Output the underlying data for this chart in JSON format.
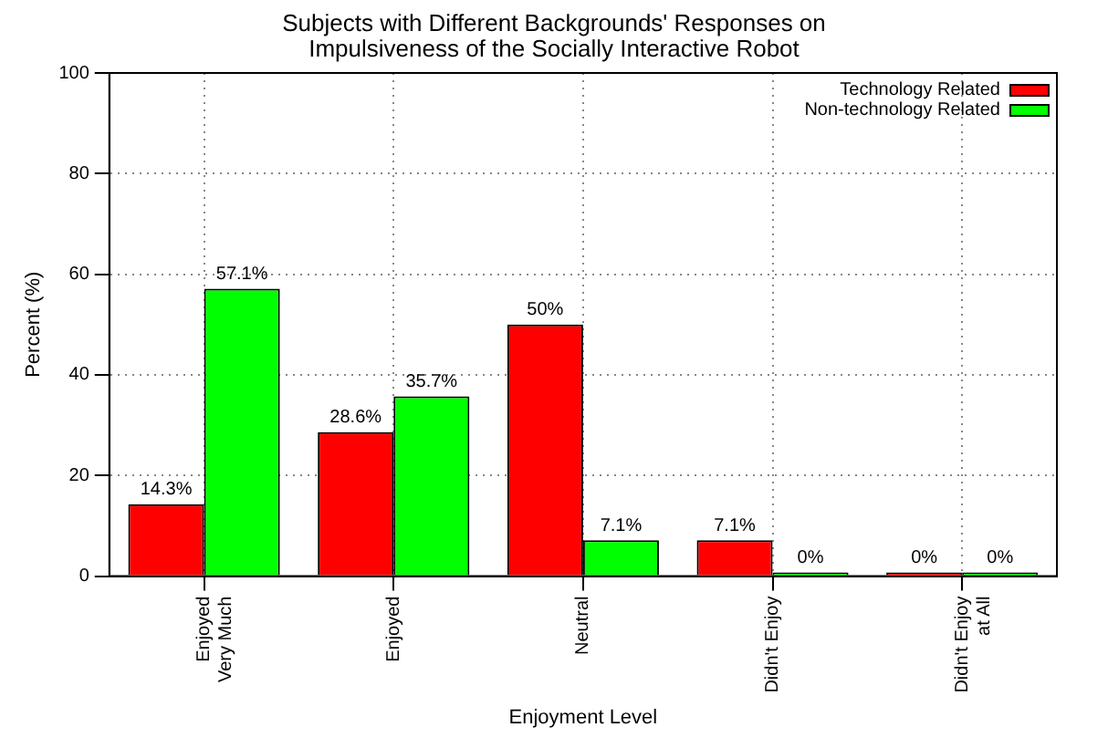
{
  "chart_data": {
    "type": "bar",
    "title": "Subjects with Different Backgrounds' Responses on Impulsiveness of the Socially Interactive Robot",
    "xlabel": "Enjoyment Level",
    "ylabel": "Percent (%)",
    "categories": [
      "Enjoyed\nVery Much",
      "Enjoyed",
      "Neutral",
      "Didn't Enjoy",
      "Didn't Enjoy\nat All"
    ],
    "series": [
      {
        "name": "Technology Related",
        "color": "#ff0000",
        "values": [
          14.3,
          28.6,
          50,
          7.1,
          0
        ],
        "value_labels": [
          "14.3%",
          "28.6%",
          "50%",
          "7.1%",
          "0%"
        ]
      },
      {
        "name": "Non-technology Related",
        "color": "#00ff00",
        "values": [
          57.1,
          35.7,
          7.1,
          0,
          0
        ],
        "value_labels": [
          "57.1%",
          "35.7%",
          "7.1%",
          "0%",
          "0%"
        ]
      }
    ],
    "ylim": [
      0,
      100
    ],
    "yticks": [
      0,
      20,
      40,
      60,
      80,
      100
    ],
    "grid": true,
    "legend": "top right"
  }
}
